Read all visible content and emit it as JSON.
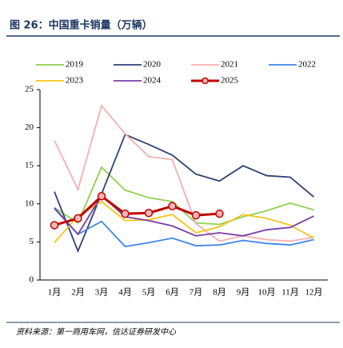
{
  "chart_data": {
    "type": "line",
    "title": "图 26：中国重卡销量（万辆）",
    "source": "资料来源：第一商用车网，信达证券研发中心",
    "categories": [
      "1月",
      "2月",
      "3月",
      "4月",
      "5月",
      "6月",
      "7月",
      "8月",
      "9月",
      "10月",
      "11月",
      "12月"
    ],
    "ylim": [
      0,
      25
    ],
    "yticks": [
      0,
      5,
      10,
      15,
      20,
      25
    ],
    "grid": false,
    "legend": "top",
    "series": [
      {
        "name": "2019",
        "color": "#8fd14f",
        "values": [
          9.5,
          7.5,
          14.8,
          11.8,
          10.8,
          10.3,
          7.5,
          7.3,
          8.3,
          9.1,
          10.1,
          9.2
        ]
      },
      {
        "name": "2020",
        "color": "#2e4272",
        "values": [
          11.6,
          3.8,
          11.3,
          19.1,
          17.8,
          16.4,
          13.9,
          13.0,
          15.0,
          13.7,
          13.5,
          10.9
        ]
      },
      {
        "name": "2021",
        "color": "#f4b0b0",
        "values": [
          18.3,
          11.9,
          22.9,
          19.2,
          16.2,
          15.8,
          7.4,
          5.1,
          5.8,
          5.3,
          5.1,
          5.6
        ]
      },
      {
        "name": "2022",
        "color": "#3f86e8",
        "values": [
          9.5,
          6.0,
          7.7,
          4.4,
          4.9,
          5.5,
          4.5,
          4.6,
          5.2,
          4.8,
          4.6,
          5.3
        ]
      },
      {
        "name": "2023",
        "color": "#f5c518",
        "values": [
          4.9,
          8.4,
          10.3,
          7.8,
          7.9,
          8.6,
          6.2,
          7.0,
          8.6,
          8.1,
          7.2,
          5.5
        ]
      },
      {
        "name": "2024",
        "color": "#7a3fa8",
        "values": [
          9.4,
          6.0,
          11.1,
          8.3,
          7.8,
          7.1,
          5.8,
          6.2,
          5.8,
          6.6,
          6.9,
          8.4
        ]
      },
      {
        "name": "2025",
        "color": "#c00000",
        "values": [
          7.2,
          8.1,
          11.0,
          8.7,
          8.8,
          9.7,
          8.5,
          8.7,
          null,
          null,
          null,
          null
        ]
      }
    ]
  }
}
